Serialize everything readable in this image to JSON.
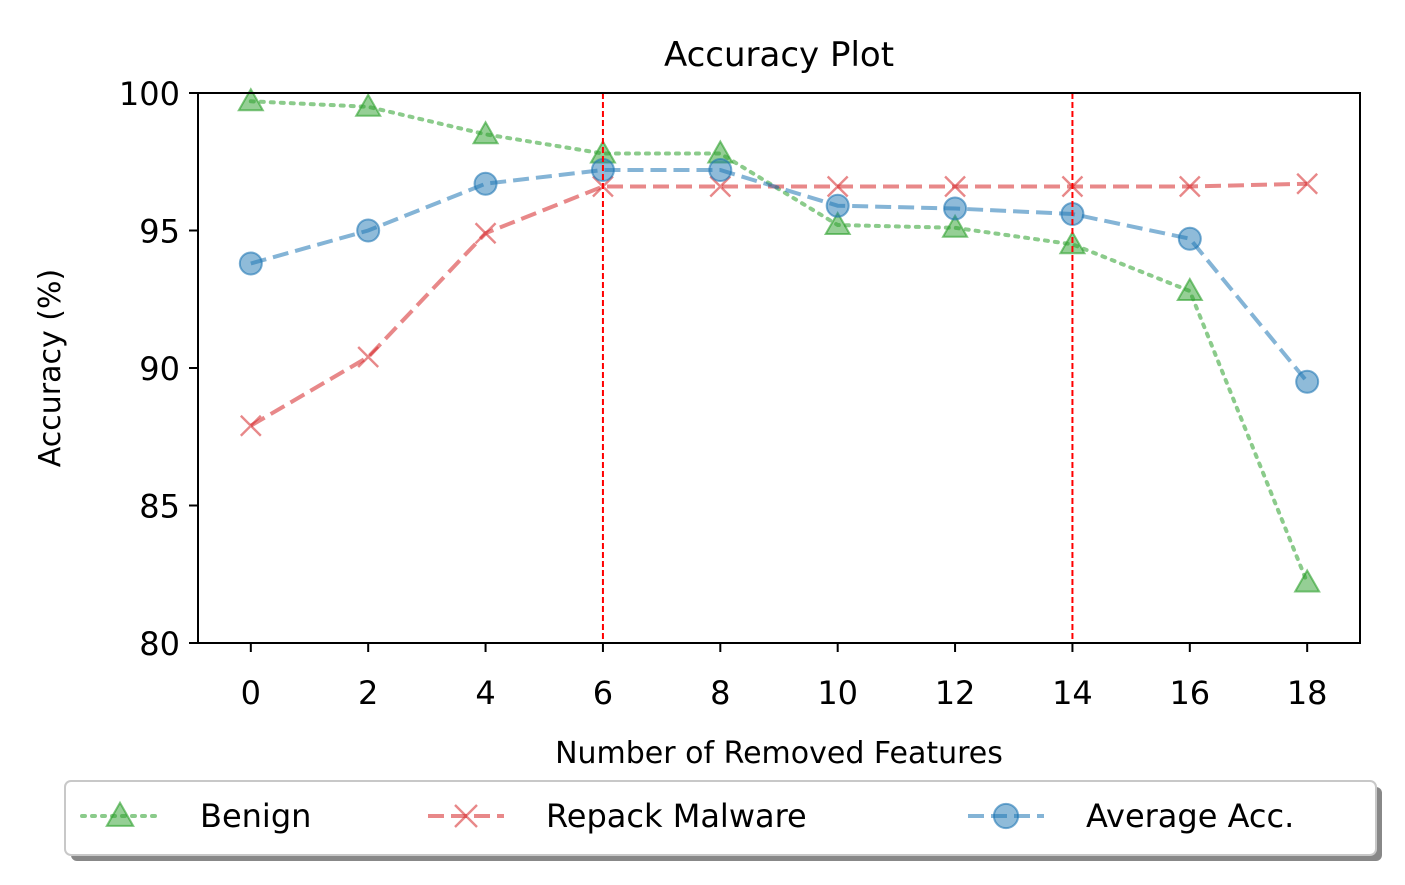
{
  "chart_data": {
    "type": "line",
    "title": "Accuracy Plot",
    "xlabel": "Number of Removed Features",
    "ylabel": "Accuracy (%)",
    "x": [
      0,
      2,
      4,
      6,
      8,
      10,
      12,
      14,
      16,
      18
    ],
    "xticks": [
      "0",
      "2",
      "4",
      "6",
      "8",
      "10",
      "12",
      "14",
      "16",
      "18"
    ],
    "yticks": [
      "80",
      "85",
      "90",
      "95",
      "100"
    ],
    "xlim": [
      -0.9,
      18.9
    ],
    "ylim": [
      80,
      100
    ],
    "grid": false,
    "legend_position": "bottom, outside plot, 3 columns",
    "vlines": [
      6,
      14
    ],
    "vline_color": "#ff0000",
    "series": [
      {
        "name": "Benign",
        "values": [
          99.7,
          99.5,
          98.5,
          97.8,
          97.8,
          95.2,
          95.1,
          94.5,
          92.8,
          82.2
        ],
        "color": "#2ca02c",
        "marker": "triangle",
        "linestyle": "dotted"
      },
      {
        "name": "Repack Malware",
        "values": [
          87.9,
          90.4,
          94.9,
          96.6,
          96.6,
          96.6,
          96.6,
          96.6,
          96.6,
          96.7
        ],
        "color": "#d62728",
        "marker": "x",
        "linestyle": "dashed"
      },
      {
        "name": "Average Acc.",
        "values": [
          93.8,
          95.0,
          96.7,
          97.2,
          97.2,
          95.9,
          95.8,
          95.6,
          94.7,
          89.5
        ],
        "color": "#1f77b4",
        "marker": "circle",
        "linestyle": "dashed"
      }
    ]
  }
}
